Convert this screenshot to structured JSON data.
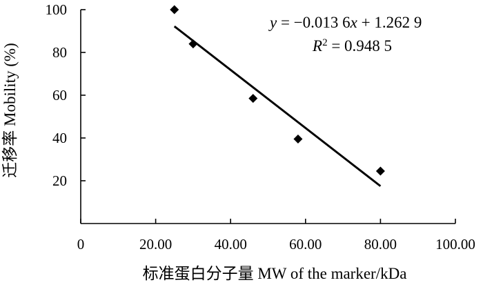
{
  "chart_data": {
    "type": "scatter",
    "xlabel": "标准蛋白分子量  MW of the marker/kDa",
    "ylabel": "迁移率 Mobility (%)",
    "xlim": [
      0,
      100
    ],
    "ylim": [
      0,
      100
    ],
    "x_ticks": [
      "0",
      "20.00",
      "40.00",
      "60.00",
      "80.00",
      "100.00"
    ],
    "y_ticks": [
      "20",
      "40",
      "60",
      "80",
      "100"
    ],
    "grid": false,
    "points": [
      {
        "x": 25,
        "y": 100
      },
      {
        "x": 30,
        "y": 84
      },
      {
        "x": 46,
        "y": 58.5
      },
      {
        "x": 58,
        "y": 39.5
      },
      {
        "x": 80,
        "y": 24.5
      }
    ],
    "trendline": {
      "x_start": 25,
      "y_start": 92.2,
      "x_end": 80,
      "y_end": 17.5
    },
    "annotation": {
      "equation": {
        "y": "y",
        "mid": " = −0.013 6",
        "x": "x",
        "rest": " + 1.262 9"
      },
      "r2": {
        "r": "R",
        "sup": "2",
        "rest": " = 0.948 5"
      }
    }
  }
}
